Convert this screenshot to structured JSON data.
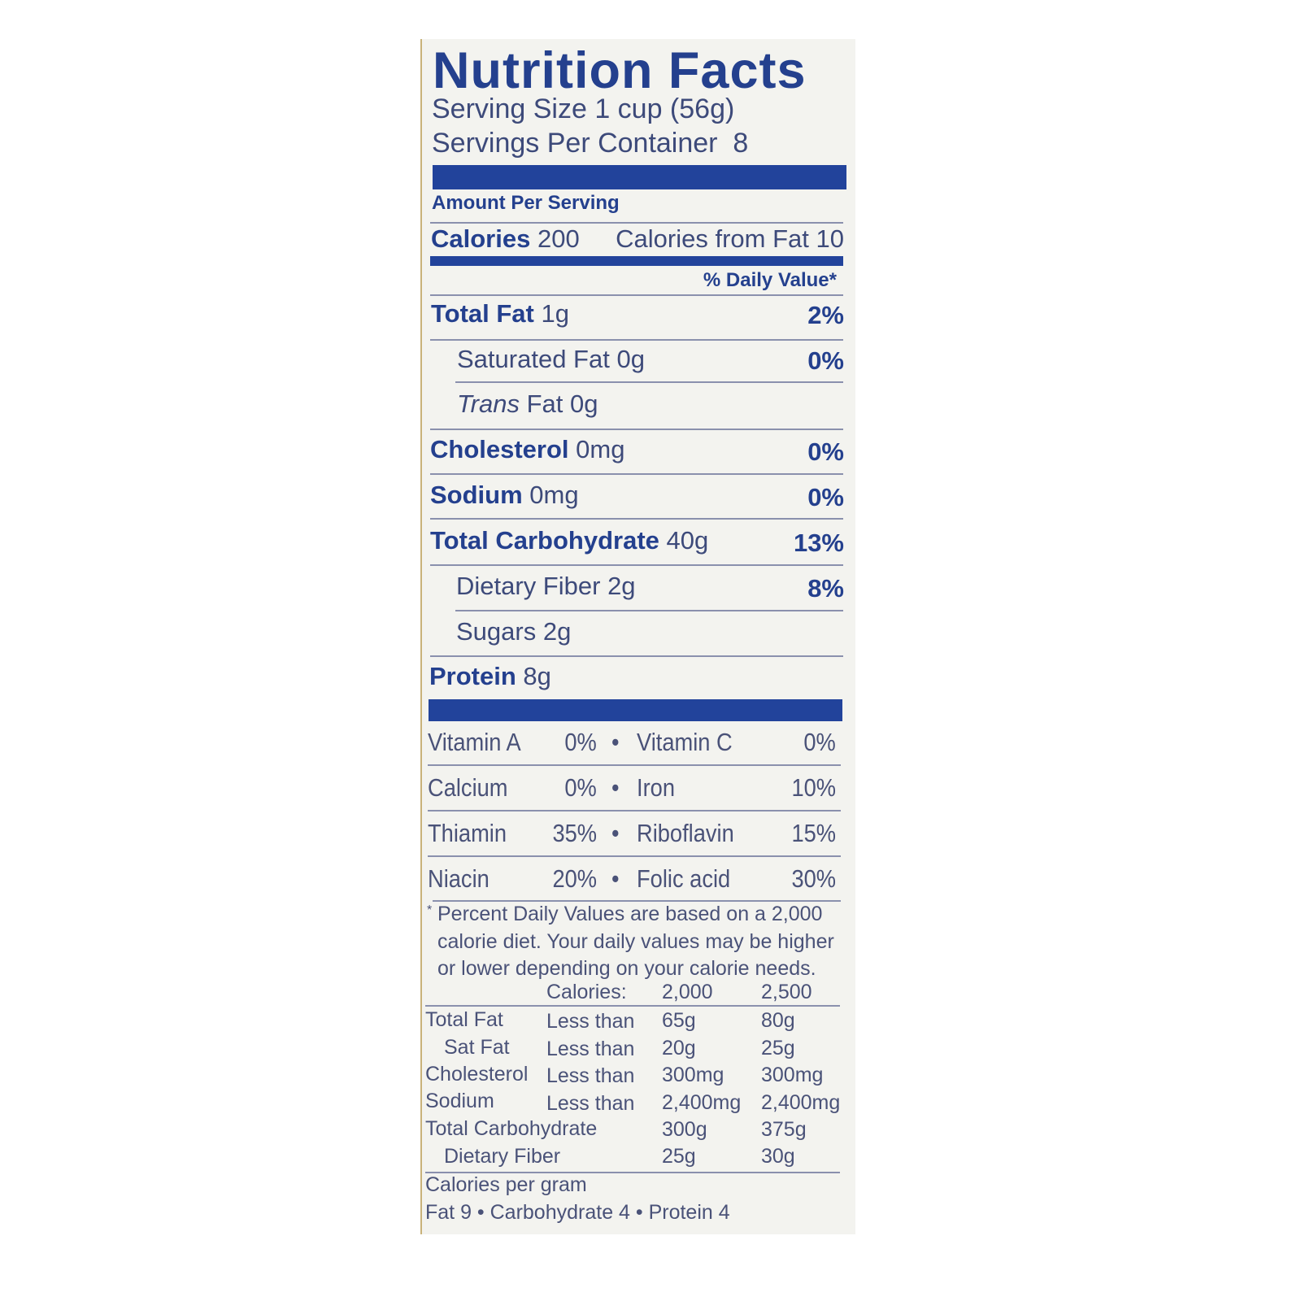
{
  "title": "Nutrition Facts",
  "serving_size": "Serving Size 1 cup (56g)",
  "servings_per_container": "Servings Per Container  8",
  "amount_per_serving": "Amount Per Serving",
  "calories": {
    "label": "Calories",
    "value": "200",
    "from_fat": "Calories from Fat 10"
  },
  "daily_value_header": "% Daily Value*",
  "nutrients": [
    {
      "label": "Total Fat",
      "amount": "1g",
      "dv": "2%"
    },
    {
      "label": "Saturated Fat",
      "amount": "0g",
      "dv": "0%"
    },
    {
      "label": "Trans",
      "label2": "Fat",
      "amount": "0g"
    },
    {
      "label": "Cholesterol",
      "amount": "0mg",
      "dv": "0%"
    },
    {
      "label": "Sodium",
      "amount": "0mg",
      "dv": "0%"
    },
    {
      "label": "Total Carbohydrate",
      "amount": "40g",
      "dv": "13%"
    },
    {
      "label": "Dietary Fiber",
      "amount": "2g",
      "dv": "8%"
    },
    {
      "label": "Sugars",
      "amount": "2g"
    },
    {
      "label": "Protein",
      "amount": "8g"
    }
  ],
  "vitamins": [
    {
      "a": "Vitamin A",
      "av": "0%",
      "b": "Vitamin C",
      "bv": "0%"
    },
    {
      "a": "Calcium",
      "av": "0%",
      "b": "Iron",
      "bv": "10%"
    },
    {
      "a": "Thiamin",
      "av": "35%",
      "b": "Riboflavin",
      "bv": "15%"
    },
    {
      "a": "Niacin",
      "av": "20%",
      "b": "Folic acid",
      "bv": "30%"
    }
  ],
  "bullet": "•",
  "footnote": {
    "star": "*",
    "lines": [
      "Percent Daily Values are based on a 2,000",
      "calorie diet. Your daily values may be higher",
      "or lower depending on your calorie needs."
    ]
  },
  "dv_table": {
    "header": [
      "Calories:",
      "2,000",
      "2,500"
    ],
    "rows": [
      [
        "Total Fat",
        "Less than",
        "65g",
        "80g"
      ],
      [
        "Sat Fat",
        "Less than",
        "20g",
        "25g"
      ],
      [
        "Cholesterol",
        "Less than",
        "300mg",
        "300mg"
      ],
      [
        "Sodium",
        "Less than",
        "2,400mg",
        "2,400mg"
      ],
      [
        "Total Carbohydrate",
        "",
        "300g",
        "375g"
      ],
      [
        "Dietary Fiber",
        "",
        "25g",
        "30g"
      ]
    ]
  },
  "calories_per_gram": {
    "label": "Calories per gram",
    "values": "Fat 9 • Carbohydrate 4 • Protein 4"
  },
  "colors": {
    "brand_blue": "#22439b",
    "text": "#3d4a7a",
    "background": "#f3f3ef"
  }
}
